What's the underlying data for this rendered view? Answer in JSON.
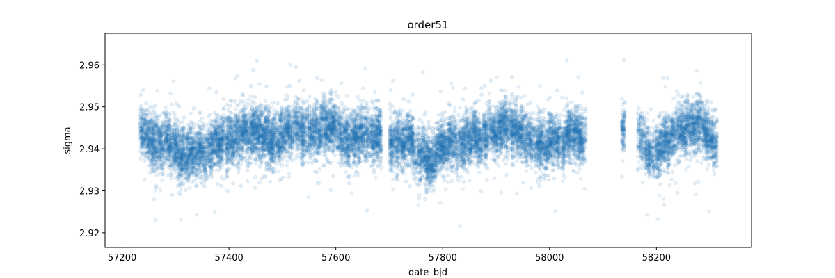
{
  "chart_data": {
    "type": "scatter",
    "title": "order51",
    "xlabel": "date_bjd",
    "ylabel": "sigma",
    "xlim": [
      57168,
      58378
    ],
    "ylim": [
      2.9165,
      2.9675
    ],
    "xticks": [
      57200,
      57400,
      57600,
      57800,
      58000,
      58200
    ],
    "yticks": [
      2.92,
      2.93,
      2.94,
      2.95,
      2.96
    ],
    "ytick_labels": [
      "2.92",
      "2.93",
      "2.94",
      "2.95",
      "2.96"
    ],
    "grid": false,
    "legend": "none",
    "marker_color": "#1f77b4",
    "marker_alpha": 0.12,
    "x_range_segments": [
      [
        57234,
        57685
      ],
      [
        57700,
        58067
      ],
      [
        58135,
        58140
      ],
      [
        58165,
        58313
      ]
    ],
    "series": [
      {
        "x": [
          57236,
          57252,
          57266,
          57280,
          57300,
          57320,
          57336,
          57350,
          57376,
          57398,
          57420,
          57450,
          57476,
          57500,
          57522,
          57540,
          57560,
          57578,
          57600,
          57620,
          57640,
          57660,
          57680,
          57705,
          57730,
          57756,
          57780,
          57796,
          57812,
          57830,
          57850,
          57874,
          57900,
          57920,
          57940,
          57960,
          57980,
          58000,
          58020,
          58040,
          58062,
          58137,
          58168,
          58190,
          58208,
          58225,
          58245,
          58260,
          58280,
          58290,
          58300,
          58310
        ],
        "y": [
          2.944,
          2.942,
          2.941,
          2.942,
          2.94,
          2.9385,
          2.9385,
          2.94,
          2.941,
          2.942,
          2.943,
          2.944,
          2.942,
          2.943,
          2.945,
          2.944,
          2.943,
          2.946,
          2.944,
          2.942,
          2.943,
          2.943,
          2.943,
          2.941,
          2.942,
          2.939,
          2.937,
          2.94,
          2.942,
          2.941,
          2.943,
          2.942,
          2.944,
          2.945,
          2.944,
          2.942,
          2.941,
          2.942,
          2.941,
          2.944,
          2.942,
          2.945,
          2.943,
          2.938,
          2.94,
          2.943,
          2.944,
          2.945,
          2.946,
          2.944,
          2.943,
          2.941
        ]
      }
    ]
  }
}
